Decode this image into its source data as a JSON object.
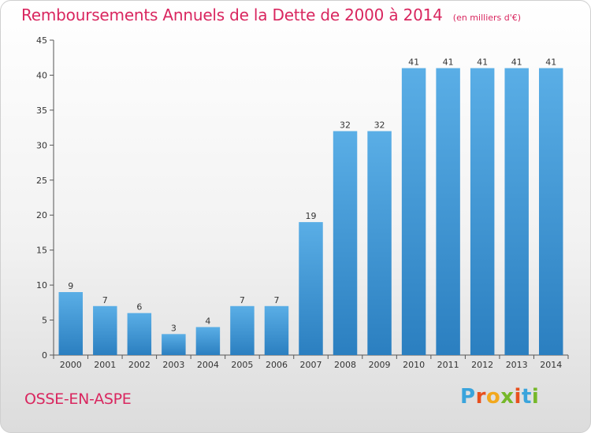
{
  "page": {
    "title": "Remboursements Annuels de la Dette de 2000 à 2014",
    "subtitle": "(en milliers d'€)",
    "commune": "OSSE-EN-ASPE",
    "logo": {
      "letters": [
        "P",
        "r",
        "o",
        "x",
        "i",
        "t",
        "i"
      ],
      "colors": [
        "#3aa4dc",
        "#e8501e",
        "#f2a81d",
        "#76b82a",
        "#e8501e",
        "#3aa4dc",
        "#76b82a"
      ]
    }
  },
  "chart_data": {
    "type": "bar",
    "title": "Remboursements Annuels de la Dette de 2000 à 2014",
    "subtitle": "(en milliers d'€)",
    "categories": [
      "2000",
      "2001",
      "2002",
      "2003",
      "2004",
      "2005",
      "2006",
      "2007",
      "2008",
      "2009",
      "2010",
      "2011",
      "2012",
      "2013",
      "2014"
    ],
    "values": [
      9,
      7,
      6,
      3,
      4,
      7,
      7,
      19,
      32,
      32,
      41,
      41,
      41,
      41,
      41
    ],
    "ylim": [
      0,
      45
    ],
    "yticks": [
      0,
      5,
      10,
      15,
      20,
      25,
      30,
      35,
      40,
      45
    ],
    "grid": false,
    "colors": {
      "bar_light": "#5aaee6",
      "bar_dark": "#2b7fc0",
      "axis": "#555555"
    }
  }
}
